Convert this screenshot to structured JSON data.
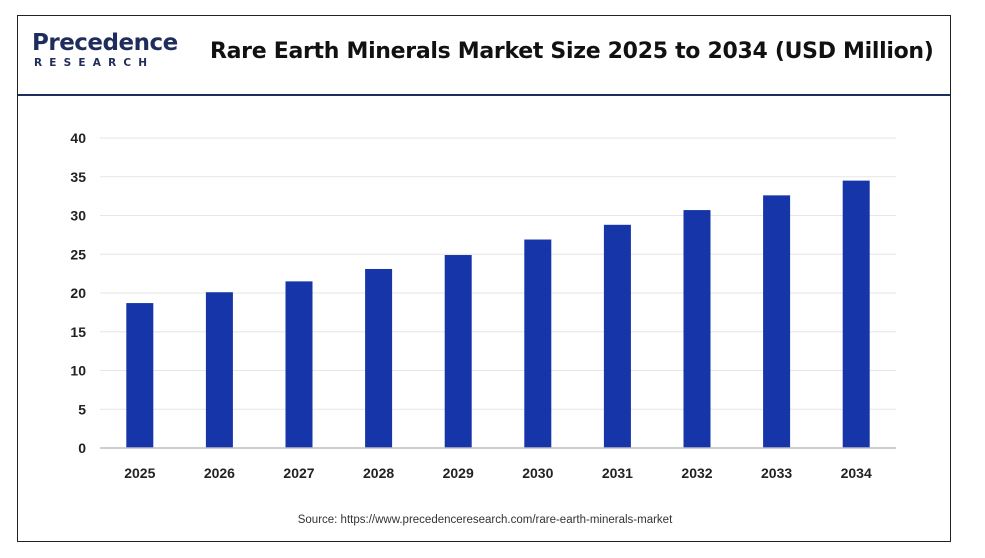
{
  "header": {
    "logo_top": "Precedence",
    "logo_bottom": "RESEARCH",
    "title": "Rare Earth Minerals Market Size 2025 to 2034 (USD Million)"
  },
  "source": "Source: https://www.precedenceresearch.com/rare-earth-minerals-market",
  "colors": {
    "bar": "#1535a8",
    "brand": "#1f2d5c",
    "grid": "#e6e6e6"
  },
  "chart_data": {
    "type": "bar",
    "title": "Rare Earth Minerals Market Size 2025 to 2034 (USD Million)",
    "categories": [
      "2025",
      "2026",
      "2027",
      "2028",
      "2029",
      "2030",
      "2031",
      "2032",
      "2033",
      "2034"
    ],
    "values": [
      18.7,
      20.1,
      21.5,
      23.1,
      24.9,
      26.9,
      28.8,
      30.7,
      32.6,
      34.5
    ],
    "yticks": [
      "0",
      "5",
      "10",
      "15",
      "20",
      "25",
      "30",
      "35",
      "40"
    ],
    "ylim": [
      0,
      40
    ],
    "xlabel": "",
    "ylabel": "",
    "grid": true
  }
}
